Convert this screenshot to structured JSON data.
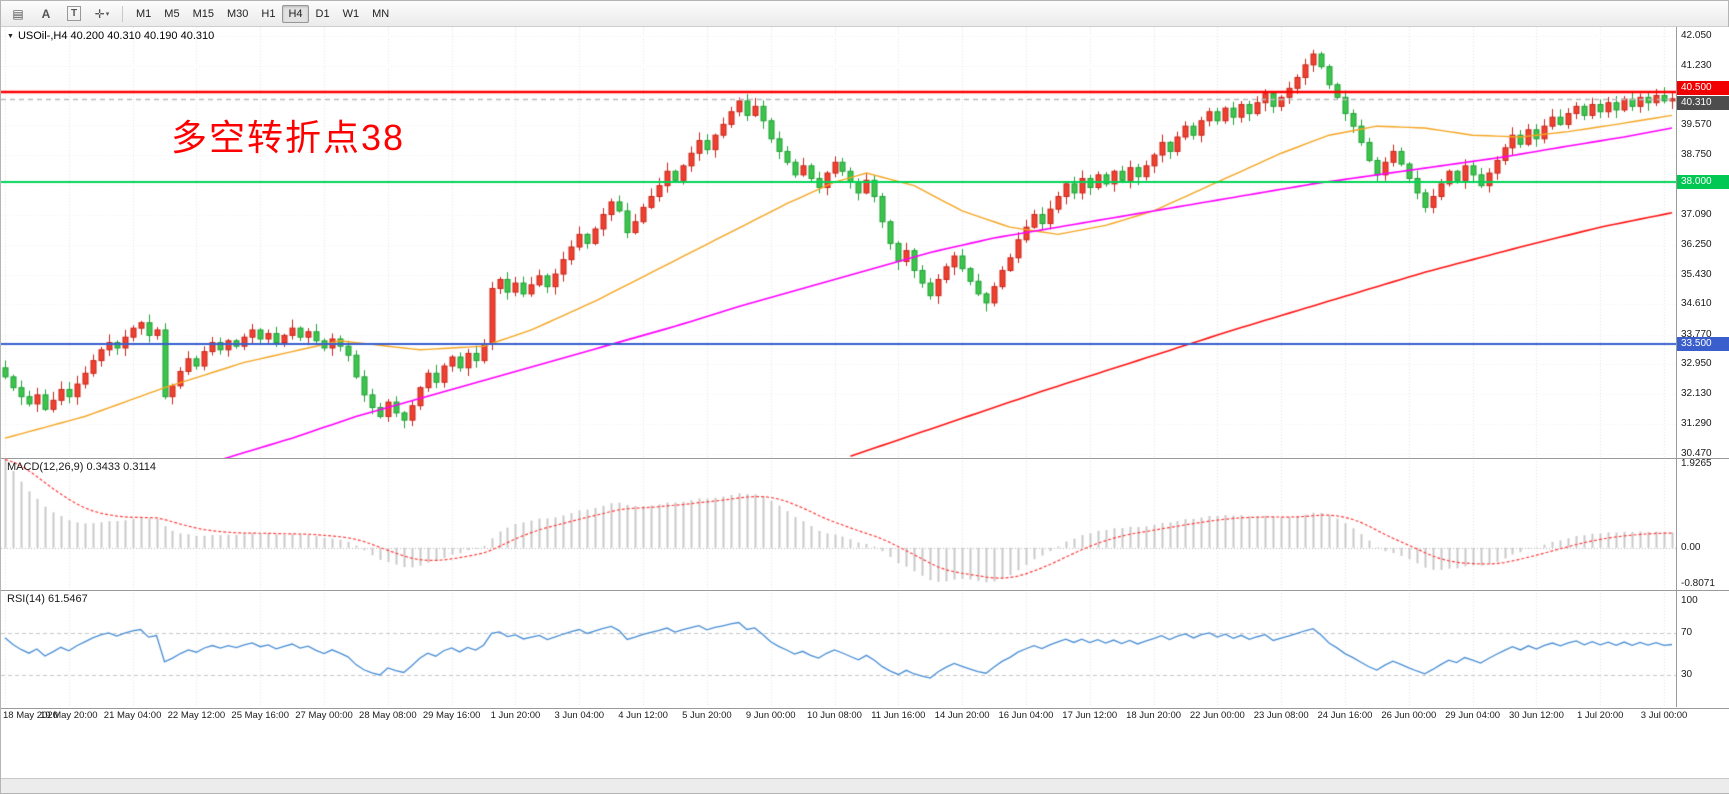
{
  "toolbar": {
    "tools": [
      {
        "name": "chart-list",
        "glyph": "▤",
        "boxed": false
      },
      {
        "name": "letter-a",
        "glyph": "A",
        "boxed": false
      },
      {
        "name": "text-tool",
        "glyph": "T",
        "boxed": true
      },
      {
        "name": "crosshair-tool",
        "glyph": "✛",
        "boxed": false,
        "caret": "▾"
      }
    ],
    "timeframes": [
      {
        "label": "M1",
        "active": false
      },
      {
        "label": "M5",
        "active": false
      },
      {
        "label": "M15",
        "active": false
      },
      {
        "label": "M30",
        "active": false
      },
      {
        "label": "H1",
        "active": false
      },
      {
        "label": "H4",
        "active": true
      },
      {
        "label": "D1",
        "active": false
      },
      {
        "label": "W1",
        "active": false
      },
      {
        "label": "MN",
        "active": false
      }
    ]
  },
  "chart": {
    "header_collapse_glyph": "▼",
    "header_title": "USOil-,H4  40.200 40.310 40.190 40.310",
    "annotation": {
      "text": "多空转折点38",
      "color": "#ff0000"
    }
  },
  "colors": {
    "bull": "#ef4130",
    "bull_border": "#c8271c",
    "bear": "#3cc44c",
    "bear_border": "#22a238",
    "macd_hist": "#c9c9c9",
    "macd_signal": "#ff4040",
    "rsi_line": "#4a8fd4",
    "grid": "#e7e7e7"
  },
  "chart_data": {
    "type": "candlestick",
    "symbol": "USOil-",
    "timeframe": "H4",
    "ohlc_current": {
      "open": "40.200",
      "high": "40.310",
      "low": "40.190",
      "close": "40.310"
    },
    "current_price": 40.31,
    "ylim": [
      30.35,
      42.3
    ],
    "tick_step": 8,
    "closes": [
      32.6,
      32.3,
      32.05,
      31.85,
      32.1,
      31.7,
      31.95,
      32.25,
      32.05,
      32.4,
      32.7,
      33.05,
      33.35,
      33.55,
      33.4,
      33.7,
      33.95,
      34.1,
      33.75,
      33.9,
      32.05,
      32.35,
      32.75,
      33.1,
      32.9,
      33.3,
      33.55,
      33.35,
      33.6,
      33.45,
      33.7,
      33.9,
      33.65,
      33.8,
      33.55,
      33.75,
      33.95,
      33.7,
      33.85,
      33.6,
      33.4,
      33.65,
      33.45,
      33.2,
      32.6,
      32.1,
      31.75,
      31.5,
      31.9,
      31.6,
      31.4,
      31.8,
      32.3,
      32.7,
      32.45,
      32.9,
      33.15,
      32.85,
      33.25,
      33.05,
      33.5,
      35.05,
      35.3,
      34.95,
      35.2,
      34.9,
      35.15,
      35.4,
      35.1,
      35.45,
      35.85,
      36.2,
      36.55,
      36.3,
      36.7,
      37.1,
      37.45,
      37.2,
      36.6,
      36.9,
      37.3,
      37.6,
      37.9,
      38.3,
      38.05,
      38.45,
      38.8,
      39.15,
      38.9,
      39.3,
      39.6,
      39.95,
      40.25,
      39.85,
      40.1,
      39.7,
      39.2,
      38.85,
      38.55,
      38.2,
      38.45,
      38.1,
      37.85,
      38.25,
      38.55,
      38.3,
      38.0,
      37.7,
      38.05,
      37.6,
      36.9,
      36.3,
      35.8,
      36.1,
      35.55,
      35.2,
      34.85,
      35.3,
      35.65,
      35.95,
      35.6,
      35.25,
      34.9,
      34.65,
      35.1,
      35.55,
      35.9,
      36.4,
      36.75,
      37.1,
      36.85,
      37.25,
      37.6,
      37.95,
      37.7,
      38.1,
      37.85,
      38.2,
      37.95,
      38.3,
      38.05,
      38.4,
      38.15,
      38.45,
      38.75,
      39.1,
      38.85,
      39.25,
      39.55,
      39.3,
      39.7,
      39.95,
      39.7,
      40.05,
      39.8,
      40.15,
      39.9,
      40.2,
      40.45,
      40.1,
      40.35,
      40.6,
      40.9,
      41.25,
      41.55,
      41.2,
      40.7,
      40.35,
      39.9,
      39.55,
      39.1,
      38.6,
      38.2,
      38.55,
      38.85,
      38.5,
      38.1,
      37.7,
      37.3,
      37.6,
      37.95,
      38.3,
      38.05,
      38.45,
      38.2,
      37.9,
      38.25,
      38.6,
      38.95,
      39.3,
      39.05,
      39.45,
      39.2,
      39.55,
      39.8,
      39.6,
      39.9,
      40.1,
      39.85,
      40.15,
      39.95,
      40.2,
      40.0,
      40.3,
      40.1,
      40.35,
      40.2,
      40.4,
      40.25,
      40.31
    ],
    "grid_values": [
      42.05,
      41.23,
      40.41,
      39.57,
      38.75,
      37.93,
      37.09,
      36.25,
      35.43,
      34.61,
      33.77,
      32.95,
      32.13,
      31.29,
      30.47
    ],
    "price_axis_labels": [
      "42.050",
      "41.230",
      "39.570",
      "38.750",
      "37.090",
      "36.250",
      "35.430",
      "34.610",
      "33.770",
      "32.950",
      "32.130",
      "31.290",
      "30.470"
    ],
    "price_badges": [
      {
        "text": "40.500",
        "value": 40.5,
        "bg": "#f00000",
        "offset": -4
      },
      {
        "text": "40.310",
        "value": 40.31,
        "bg": "#4d4d4d",
        "offset": 4
      },
      {
        "text": "38.000",
        "value": 38.0,
        "bg": "#00c853",
        "offset": 0
      },
      {
        "text": "33.500",
        "value": 33.5,
        "bg": "#3a5fcd",
        "offset": 0
      }
    ],
    "hlines": [
      {
        "value": 40.5,
        "color": "#ff0000",
        "width": 2.4,
        "label": "40.500"
      },
      {
        "value": 38.0,
        "color": "#00d455",
        "width": 2,
        "label": "38.000"
      },
      {
        "value": 33.5,
        "color": "#3a5fd0",
        "width": 2,
        "label": "33.500"
      }
    ],
    "moving_averages": [
      {
        "name": "ma-fast",
        "color": "#f5a623",
        "width": 1.4,
        "anchors": [
          [
            0,
            30.9
          ],
          [
            10,
            31.5
          ],
          [
            20,
            32.3
          ],
          [
            30,
            33.0
          ],
          [
            42,
            33.6
          ],
          [
            52,
            33.35
          ],
          [
            60,
            33.45
          ],
          [
            66,
            33.9
          ],
          [
            74,
            34.7
          ],
          [
            82,
            35.6
          ],
          [
            90,
            36.5
          ],
          [
            98,
            37.4
          ],
          [
            104,
            38.0
          ],
          [
            108,
            38.25
          ],
          [
            114,
            37.9
          ],
          [
            120,
            37.2
          ],
          [
            126,
            36.75
          ],
          [
            132,
            36.55
          ],
          [
            138,
            36.8
          ],
          [
            144,
            37.2
          ],
          [
            152,
            38.0
          ],
          [
            160,
            38.8
          ],
          [
            166,
            39.3
          ],
          [
            172,
            39.55
          ],
          [
            178,
            39.5
          ],
          [
            184,
            39.3
          ],
          [
            190,
            39.25
          ],
          [
            196,
            39.4
          ],
          [
            202,
            39.6
          ],
          [
            209,
            39.85
          ]
        ]
      },
      {
        "name": "ma-mid",
        "color": "#ff00ff",
        "width": 1.6,
        "anchors": [
          [
            27,
            30.3
          ],
          [
            36,
            30.9
          ],
          [
            44,
            31.5
          ],
          [
            52,
            32.0
          ],
          [
            60,
            32.5
          ],
          [
            68,
            33.0
          ],
          [
            76,
            33.5
          ],
          [
            84,
            34.0
          ],
          [
            92,
            34.55
          ],
          [
            100,
            35.05
          ],
          [
            108,
            35.55
          ],
          [
            116,
            36.05
          ],
          [
            124,
            36.45
          ],
          [
            132,
            36.75
          ],
          [
            140,
            37.05
          ],
          [
            148,
            37.35
          ],
          [
            156,
            37.65
          ],
          [
            164,
            37.95
          ],
          [
            172,
            38.2
          ],
          [
            180,
            38.45
          ],
          [
            188,
            38.7
          ],
          [
            196,
            39.0
          ],
          [
            203,
            39.25
          ],
          [
            209,
            39.5
          ]
        ]
      },
      {
        "name": "ma-slow",
        "color": "#ff1414",
        "width": 1.6,
        "anchors": [
          [
            106,
            30.4
          ],
          [
            118,
            31.3
          ],
          [
            130,
            32.2
          ],
          [
            142,
            33.05
          ],
          [
            154,
            33.9
          ],
          [
            166,
            34.7
          ],
          [
            178,
            35.5
          ],
          [
            190,
            36.2
          ],
          [
            200,
            36.75
          ],
          [
            209,
            37.15
          ]
        ]
      }
    ],
    "time_labels": [
      "18 May 2020",
      "19 May 20:00",
      "21 May 04:00",
      "22 May 12:00",
      "25 May 16:00",
      "27 May 00:00",
      "28 May 08:00",
      "29 May 16:00",
      "1 Jun 20:00",
      "3 Jun 04:00",
      "4 Jun 12:00",
      "5 Jun 20:00",
      "9 Jun 00:00",
      "10 Jun 08:00",
      "11 Jun 16:00",
      "14 Jun 20:00",
      "16 Jun 04:00",
      "17 Jun 12:00",
      "18 Jun 20:00",
      "22 Jun 00:00",
      "23 Jun 08:00",
      "24 Jun 16:00",
      "26 Jun 00:00",
      "29 Jun 04:00",
      "30 Jun 12:00",
      "1 Jul 20:00",
      "3 Jul 00:00"
    ],
    "macd": {
      "label": "MACD(12,26,9) 0.3433 0.3114",
      "ylim": [
        -0.95,
        2.02
      ],
      "axis_labels": [
        {
          "text": "1.9265",
          "value": 1.9265
        },
        {
          "text": "0.00",
          "value": 0
        },
        {
          "text": "-0.8071",
          "value": -0.8071
        }
      ]
    },
    "rsi": {
      "label": "RSI(14) 61.5467",
      "ylim": [
        0,
        110
      ],
      "levels": [
        70,
        30
      ],
      "axis_labels": [
        {
          "text": "100",
          "value": 100
        },
        {
          "text": "70",
          "value": 70
        },
        {
          "text": "30",
          "value": 30
        }
      ]
    }
  }
}
